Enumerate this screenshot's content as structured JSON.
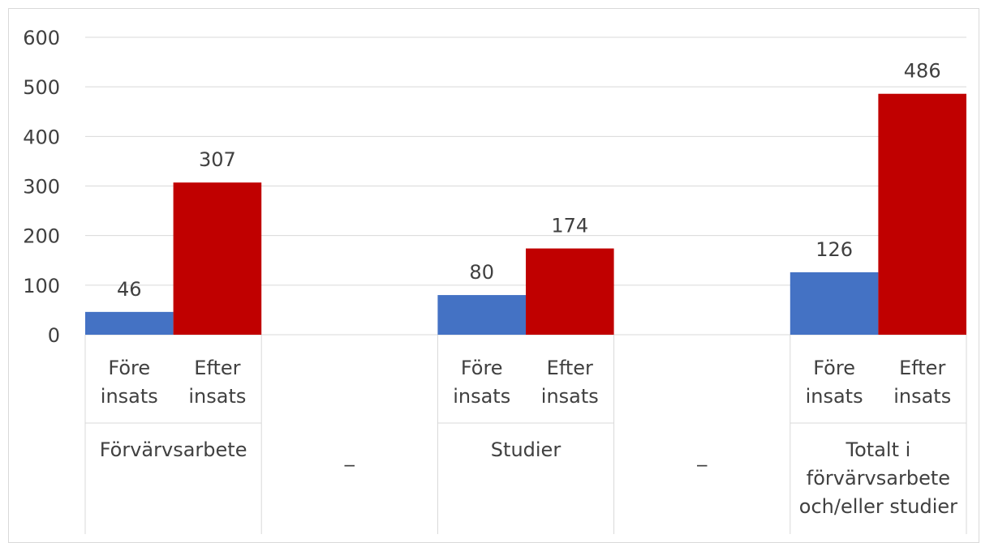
{
  "chart_data": {
    "type": "bar",
    "groups": [
      {
        "label": "Förvärvsarbete",
        "label_lines": [
          "Förvärvsarbete"
        ],
        "sub": [
          "Före insats",
          "Efter insats"
        ],
        "values": [
          46,
          307
        ]
      },
      {
        "label": "_",
        "label_lines": [
          "_"
        ],
        "sub": [],
        "values": []
      },
      {
        "label": "Studier",
        "label_lines": [
          "Studier"
        ],
        "sub": [
          "Före insats",
          "Efter insats"
        ],
        "values": [
          80,
          174
        ]
      },
      {
        "label": "_",
        "label_lines": [
          "_"
        ],
        "sub": [],
        "values": []
      },
      {
        "label": "Totalt i förvärvsarbete och/eller studier",
        "label_lines": [
          "Totalt i",
          "förvärvsarbete",
          "och/eller studier"
        ],
        "sub": [
          "Före insats",
          "Efter insats"
        ],
        "values": [
          126,
          486
        ]
      }
    ],
    "series": [
      {
        "values": [
          46,
          80,
          126
        ]
      },
      {
        "values": [
          307,
          174,
          486
        ]
      }
    ],
    "colors": [
      "#4472c4",
      "#c00000"
    ],
    "ylim": [
      0,
      600
    ],
    "yticks": [
      "0",
      "100",
      "200",
      "300",
      "400",
      "500",
      "600"
    ],
    "grid": true,
    "legend": "none",
    "xlabel": "",
    "ylabel": "",
    "title": ""
  }
}
